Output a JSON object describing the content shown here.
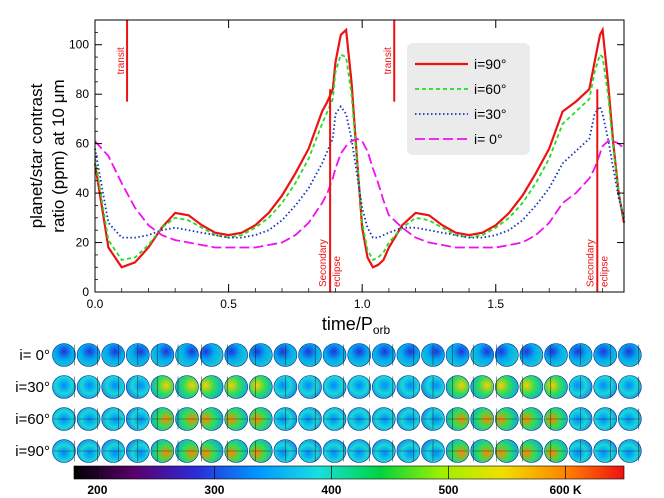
{
  "chart_data": {
    "type": "line",
    "xlabel_main": "time/P",
    "xlabel_sub": "orb",
    "ylabel_line1": "planet/star contrast",
    "ylabel_line2": "ratio (ppm) at 10 μm",
    "xlim": [
      0,
      1.98
    ],
    "ylim": [
      0,
      110
    ],
    "x_ticks": [
      0,
      0.5,
      1.0,
      1.5
    ],
    "x_tick_labels": [
      "0.0",
      "0.5",
      "1.0",
      "1.5"
    ],
    "y_ticks": [
      0,
      20,
      40,
      60,
      80,
      100
    ],
    "y_tick_labels": [
      "0",
      "20",
      "40",
      "60",
      "80",
      "100"
    ],
    "legend_position": "top-right",
    "x": [
      0.0,
      0.05,
      0.1,
      0.15,
      0.2,
      0.25,
      0.3,
      0.35,
      0.4,
      0.45,
      0.5,
      0.55,
      0.6,
      0.65,
      0.7,
      0.75,
      0.8,
      0.85,
      0.87,
      0.89,
      0.9,
      0.92,
      0.94,
      0.96,
      0.98,
      1.0,
      1.02,
      1.04,
      1.06,
      1.08,
      1.1,
      1.15,
      1.2,
      1.25,
      1.3,
      1.35,
      1.4,
      1.45,
      1.5,
      1.55,
      1.6,
      1.65,
      1.7,
      1.75,
      1.8,
      1.85,
      1.87,
      1.89,
      1.9,
      1.92,
      1.94,
      1.96,
      1.98
    ],
    "series": [
      {
        "name": "i=90°",
        "color": "#ee1111",
        "dash": "solid",
        "values": [
          52,
          18,
          10,
          12,
          18,
          26,
          32,
          31,
          27,
          24,
          23,
          24,
          27,
          32,
          39,
          48,
          58,
          73,
          77,
          82,
          93,
          104,
          106,
          85,
          55,
          26,
          14,
          10,
          11,
          13,
          18,
          27,
          32,
          31,
          27,
          24,
          23,
          24,
          27,
          32,
          39,
          48,
          58,
          73,
          77,
          82,
          93,
          104,
          106,
          85,
          60,
          40,
          28
        ]
      },
      {
        "name": "i=60°",
        "color": "#22dd22",
        "dash": "4,3",
        "values": [
          54,
          21,
          13,
          14,
          19,
          26,
          30,
          29,
          26,
          23,
          22,
          23,
          26,
          30,
          36,
          44,
          54,
          68,
          73,
          78,
          89,
          96,
          95,
          80,
          54,
          28,
          17,
          13,
          14,
          16,
          20,
          26,
          30,
          29,
          26,
          23,
          22,
          23,
          26,
          30,
          36,
          44,
          54,
          68,
          73,
          78,
          89,
          96,
          95,
          80,
          58,
          40,
          29
        ]
      },
      {
        "name": "i=30°",
        "color": "#1133bb",
        "dash": "1.5,2.5",
        "values": [
          58,
          28,
          22,
          22,
          23,
          25,
          26,
          25,
          24,
          23,
          22,
          22,
          23,
          25,
          29,
          35,
          42,
          52,
          57,
          62,
          72,
          75,
          72,
          62,
          48,
          34,
          26,
          22,
          22,
          23,
          24,
          26,
          26,
          25,
          24,
          23,
          22,
          22,
          23,
          25,
          29,
          35,
          42,
          52,
          57,
          62,
          72,
          75,
          72,
          62,
          50,
          38,
          30
        ]
      },
      {
        "name": "i= 0°",
        "color": "#ee11ee",
        "dash": "10,4",
        "values": [
          61,
          55,
          44,
          34,
          27,
          23,
          21,
          20,
          19,
          18,
          18,
          18,
          18,
          19,
          20,
          23,
          28,
          36,
          40,
          46,
          50,
          56,
          59,
          61,
          62,
          61,
          57,
          50,
          44,
          37,
          31,
          26,
          22,
          20,
          19,
          18,
          18,
          18,
          18,
          19,
          20,
          23,
          28,
          36,
          40,
          46,
          50,
          56,
          59,
          61,
          61,
          60,
          58
        ]
      }
    ],
    "annotations": [
      {
        "text": "transit",
        "x": 0.12,
        "kind": "transit"
      },
      {
        "text": "transit",
        "x": 1.12,
        "kind": "transit"
      },
      {
        "text": "Secondary",
        "x": 0.88,
        "kind": "eclipse"
      },
      {
        "text": "eclipse",
        "x": 0.88,
        "kind": "eclipse"
      },
      {
        "text": "Secondary",
        "x": 1.88,
        "kind": "eclipse"
      },
      {
        "text": "eclipse",
        "x": 1.88,
        "kind": "eclipse"
      }
    ]
  },
  "globe_rows": [
    {
      "label": "i= 0°"
    },
    {
      "label": "i=30°"
    },
    {
      "label": "i=60°"
    },
    {
      "label": "i=90°"
    }
  ],
  "globes_per_row": 24,
  "colorbar": {
    "tick_labels": [
      "200",
      "300",
      "400",
      "500",
      "600 K"
    ],
    "values": [
      200,
      300,
      400,
      500,
      600
    ],
    "range": [
      180,
      650
    ],
    "stops": [
      "#000000",
      "#5b006e",
      "#2b2bd9",
      "#0096ff",
      "#18e0e0",
      "#00d440",
      "#9cf000",
      "#f0e000",
      "#ff8800",
      "#ee1111"
    ]
  }
}
